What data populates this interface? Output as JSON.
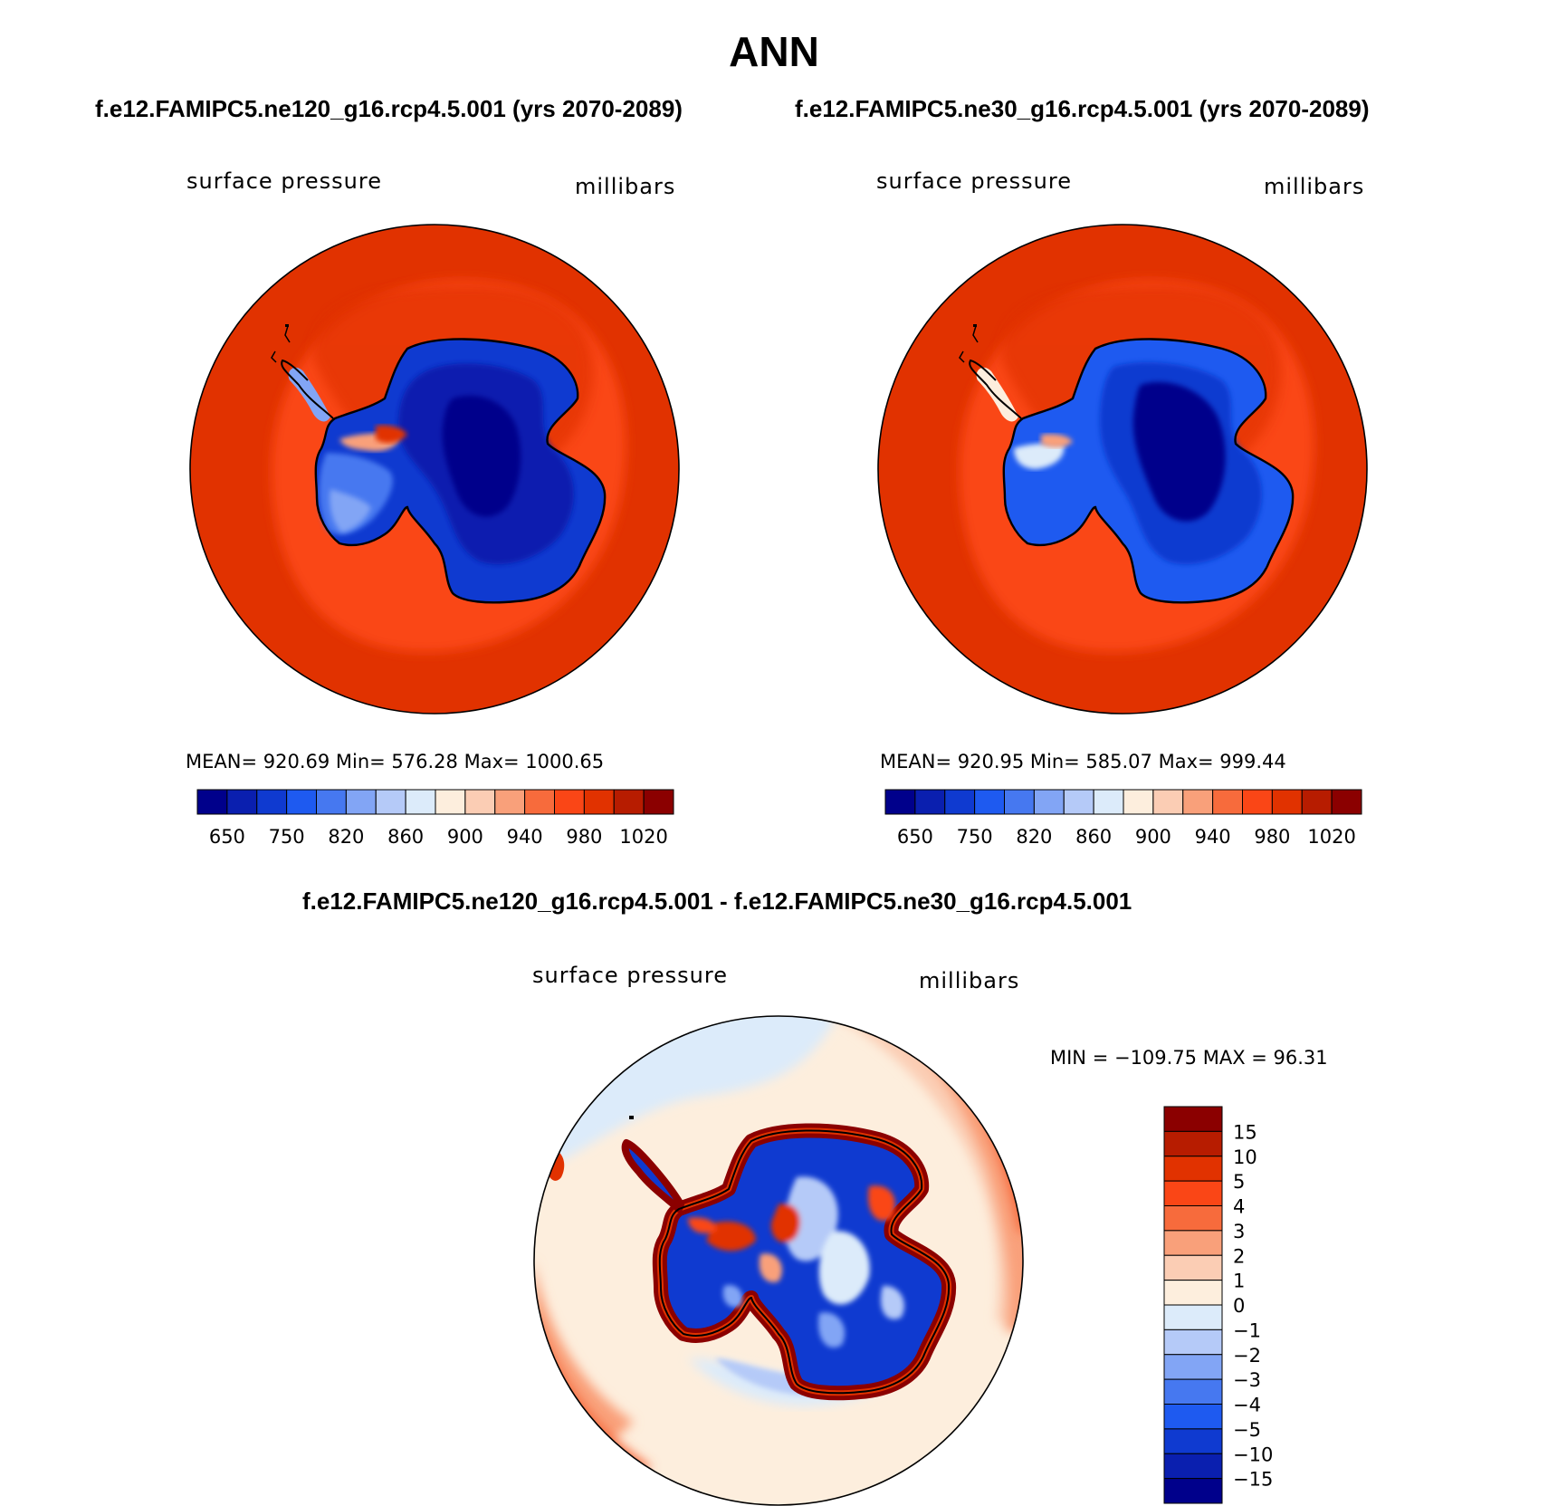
{
  "page_title": "ANN",
  "panel_a": {
    "case": "f.e12.FAMIPC5.ne120_g16.rcp4.5.001 (yrs 2070-2089)",
    "variable": "surface pressure",
    "units": "millibars",
    "stats": "MEAN= 920.69   Min= 576.28   Max= 1000.65"
  },
  "panel_b": {
    "case": "f.e12.FAMIPC5.ne30_g16.rcp4.5.001 (yrs 2070-2089)",
    "variable": "surface pressure",
    "units": "millibars",
    "stats": "MEAN= 920.95   Min= 585.07   Max= 999.44"
  },
  "panel_diff": {
    "case": "f.e12.FAMIPC5.ne120_g16.rcp4.5.001 - f.e12.FAMIPC5.ne30_g16.rcp4.5.001",
    "variable": "surface pressure",
    "units": "millibars",
    "stats": "MIN = −109.75 MAX =   96.31"
  },
  "abs_colorbar": {
    "colors": [
      "#00008b",
      "#0a1faf",
      "#0f3ad0",
      "#1e5af0",
      "#4678f0",
      "#82a5f5",
      "#b5caf8",
      "#dcebfa",
      "#fdeedd",
      "#fbcdb4",
      "#f9a07a",
      "#f76b3c",
      "#fa4616",
      "#e13200",
      "#b71c00",
      "#8b0000"
    ],
    "labels": [
      "650",
      "750",
      "820",
      "860",
      "900",
      "940",
      "980",
      "1020"
    ]
  },
  "diff_colorbar": {
    "colors": [
      "#8b0000",
      "#b71c00",
      "#e13200",
      "#fa4616",
      "#f76b3c",
      "#f9a07a",
      "#fbcdb4",
      "#fdeedd",
      "#dcebfa",
      "#b5caf8",
      "#82a5f5",
      "#4678f0",
      "#1e5af0",
      "#0f3ad0",
      "#0a1faf",
      "#00008b"
    ],
    "labels": [
      "15",
      "10",
      "5",
      "4",
      "3",
      "2",
      "1",
      "0",
      "−1",
      "−2",
      "−3",
      "−4",
      "−5",
      "−10",
      "−15"
    ]
  }
}
